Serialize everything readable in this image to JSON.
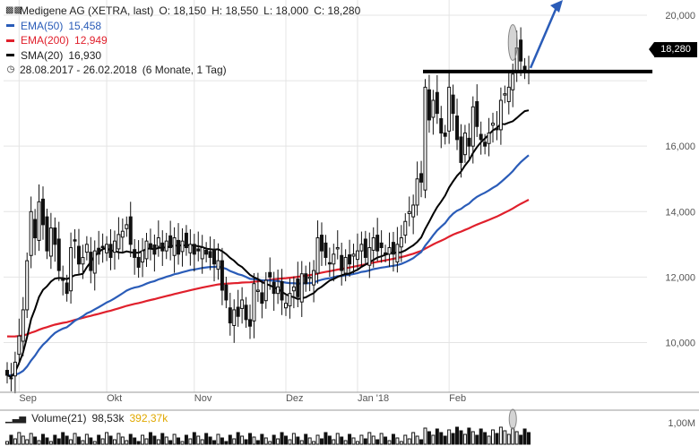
{
  "header": {
    "icon": "candlestick-chart-icon",
    "title": "Medigene AG (XETRA, last)",
    "ohlc": {
      "o": "O: 18,150",
      "h": "H: 18,550",
      "l": "L: 18,000",
      "c": "C: 18,280"
    },
    "indicators": [
      {
        "label": "EMA(50)",
        "value": "15,458",
        "color": "#2a5cb8"
      },
      {
        "label": "EMA(200)",
        "value": "12,949",
        "color": "#e0202c"
      },
      {
        "label": "SMA(20)",
        "value": "16,930",
        "color": "#000000"
      }
    ],
    "period_icon": "clock-icon",
    "period": "28.08.2017 - 26.02.2018",
    "range": "(6 Monate, 1 Tag)"
  },
  "last_price_label": "18,280",
  "volume": {
    "icon": "bar-chart-icon",
    "label": "Volume(21)",
    "avg": "98,53k",
    "current": "392,37k",
    "current_color": "#e0a800",
    "axis_label": "1,00M"
  },
  "chart_data": {
    "type": "candlestick",
    "x_range": [
      "28.08.2017",
      "26.02.2018"
    ],
    "x_ticks": [
      "Sep",
      "Okt",
      "Nov",
      "Dez",
      "Jan '18",
      "Feb"
    ],
    "y_ticks": [
      "10,000",
      "12,000",
      "14,000",
      "16,000",
      "20,000"
    ],
    "ylim": [
      8.7,
      20.3
    ],
    "grid": true,
    "axis_side": "right",
    "close": [
      9.0,
      8.9,
      9.4,
      10.2,
      11.0,
      12.5,
      14.0,
      13.2,
      14.3,
      13.6,
      12.8,
      13.5,
      13.0,
      12.2,
      11.9,
      11.5,
      12.9,
      13.1,
      12.4,
      12.6,
      13.0,
      12.2,
      12.8,
      12.7,
      12.9,
      13.0,
      12.6,
      13.1,
      13.3,
      13.4,
      13.6,
      13.0,
      12.6,
      12.3,
      12.8,
      13.1,
      12.9,
      12.7,
      13.2,
      12.8,
      13.1,
      12.9,
      13.2,
      12.7,
      13.1,
      12.9,
      13.0,
      12.7,
      12.8,
      12.9,
      12.7,
      12.6,
      12.4,
      12.5,
      11.6,
      11.3,
      10.6,
      11.0,
      10.8,
      11.3,
      10.7,
      10.5,
      11.8,
      11.6,
      11.2,
      11.9,
      12.0,
      11.5,
      11.7,
      11.3,
      11.2,
      11.5,
      11.7,
      11.4,
      12.1,
      11.8,
      12.0,
      12.2,
      13.2,
      12.8,
      12.6,
      12.4,
      12.7,
      12.9,
      12.2,
      12.6,
      12.4,
      12.7,
      12.8,
      13.0,
      12.6,
      12.9,
      13.2,
      12.8,
      12.9,
      12.7,
      12.9,
      12.7,
      13.0,
      13.2,
      13.7,
      14.0,
      14.2,
      15.0,
      14.9,
      17.8,
      16.8,
      17.4,
      17.0,
      16.4,
      16.3,
      17.8,
      17.0,
      16.2,
      15.5,
      16.4,
      16.0,
      17.2,
      16.6,
      16.2,
      16.0,
      16.4,
      16.7,
      16.5,
      17.4,
      17.6,
      17.8,
      18.2,
      19.0,
      18.6,
      18.3,
      18.28
    ],
    "volume_scale_max": "1,00M",
    "last_price": 18.28,
    "indicators": {
      "SMA(20)": {
        "last": 16.93
      },
      "EMA(50)": {
        "last": 15.458
      },
      "EMA(200)": {
        "last": 12.949
      }
    },
    "annotations": [
      {
        "type": "horizontal-line",
        "value": 18.28
      },
      {
        "type": "arrow",
        "direction": "up"
      },
      {
        "type": "ellipse-highlight",
        "on": "last-day spike"
      }
    ]
  }
}
